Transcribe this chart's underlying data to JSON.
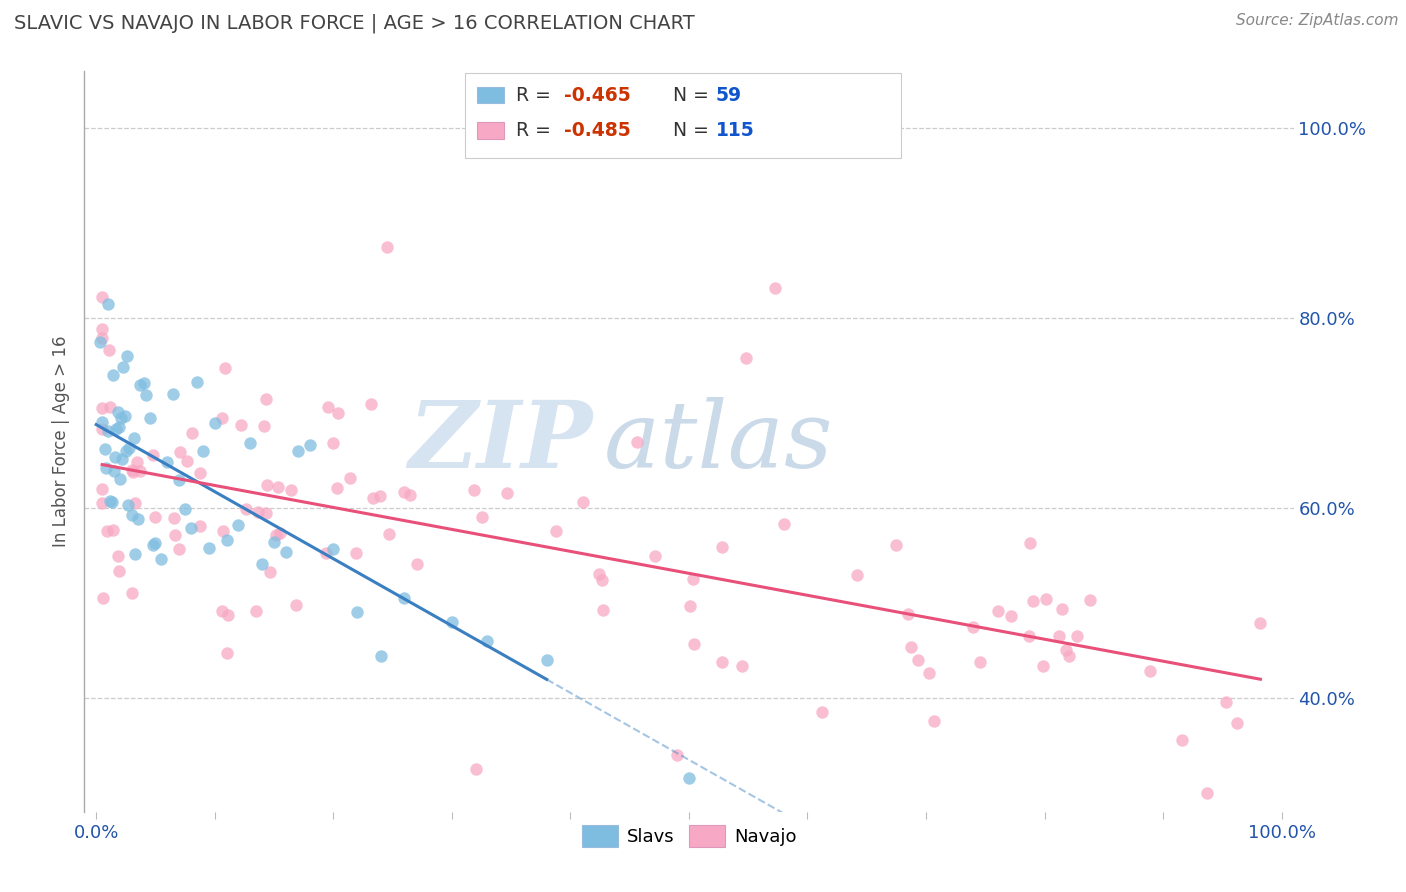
{
  "title": "SLAVIC VS NAVAJO IN LABOR FORCE | AGE > 16 CORRELATION CHART",
  "source_text": "Source: ZipAtlas.com",
  "ylabel": "In Labor Force | Age > 16",
  "xlim": [
    -0.01,
    1.01
  ],
  "ylim": [
    0.28,
    1.06
  ],
  "x_tick_pos": [
    0.0,
    0.1,
    0.2,
    0.3,
    0.4,
    0.5,
    0.6,
    0.7,
    0.8,
    0.9,
    1.0
  ],
  "x_tick_labels": [
    "0.0%",
    "",
    "",
    "",
    "",
    "",
    "",
    "",
    "",
    "",
    "100.0%"
  ],
  "y_tick_pos": [
    0.4,
    0.6,
    0.8,
    1.0
  ],
  "y_tick_labels": [
    "40.0%",
    "60.0%",
    "80.0%",
    "100.0%"
  ],
  "slavs_color": "#7fbde0",
  "navajo_color": "#f7a8c4",
  "slavs_line_color": "#3a7fc1",
  "navajo_line_color": "#e8507a",
  "slavs_R": -0.465,
  "slavs_N": 59,
  "navajo_R": -0.485,
  "navajo_N": 115,
  "legend_R_color": "#e05c00",
  "legend_N_color": "#1a66cc",
  "watermark_zip": "ZIP",
  "watermark_atlas": "atlas",
  "watermark_color_zip": "#c8d8e8",
  "watermark_color_atlas": "#b0c8e0",
  "background_color": "#ffffff",
  "grid_color": "#cccccc",
  "title_color": "#444444",
  "tick_color": "#2255aa",
  "source_color": "#888888"
}
